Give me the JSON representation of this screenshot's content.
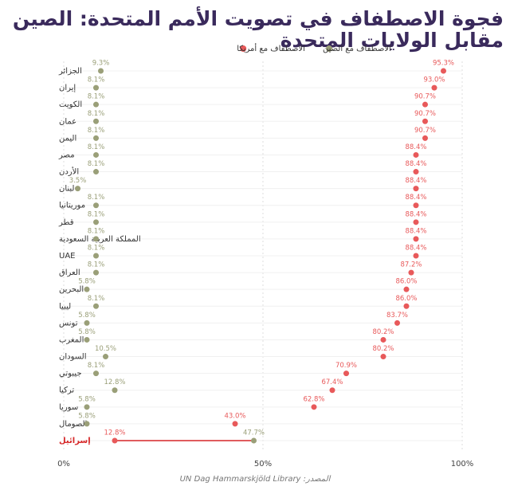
{
  "chart_data": {
    "type": "dumbbell",
    "title": "فجوة الاصطفاف في تصويت الأمم المتحدة: الصين مقابل الولايات المتحدة",
    "source": "المصدر: UN Dag Hammarskjöld Library",
    "categories": [
      "الجزائر",
      "إيران",
      "الكويت",
      "عمان",
      "اليمن",
      "مصر",
      "الأردن",
      "لبنان",
      "موريتانيا",
      "قطر",
      "المملكة العربية السعودية",
      "UAE",
      "العراق",
      "البحرين",
      "ليبيا",
      "تونس",
      "المغرب",
      "السودان",
      "جيبوتي",
      "تركيا",
      "سوريا",
      "الصومال",
      "إسرائيل"
    ],
    "series": [
      {
        "name": "الاصطفاف مع أمريكا",
        "color": "#e8595a",
        "values": [
          95.3,
          93.0,
          90.7,
          90.7,
          90.7,
          88.4,
          88.4,
          88.4,
          88.4,
          88.4,
          88.4,
          88.4,
          87.2,
          86.0,
          86.0,
          83.7,
          80.2,
          80.2,
          70.9,
          67.4,
          62.8,
          43.0,
          12.8
        ],
        "value_labels": [
          "95.3%",
          "93.0%",
          "90.7%",
          "90.7%",
          "90.7%",
          "88.4%",
          "88.4%",
          "88.4%",
          "88.4%",
          "88.4%",
          "88.4%",
          "88.4%",
          "87.2%",
          "86.0%",
          "86.0%",
          "83.7%",
          "80.2%",
          "80.2%",
          "70.9%",
          "67.4%",
          "62.8%",
          "43.0%",
          "12.8%"
        ]
      },
      {
        "name": "الاصطفاف مع الصين",
        "color": "#9a9f78",
        "values": [
          9.3,
          8.1,
          8.1,
          8.1,
          8.1,
          8.1,
          8.1,
          3.5,
          8.1,
          8.1,
          8.1,
          8.1,
          8.1,
          5.8,
          8.1,
          5.8,
          5.8,
          10.5,
          8.1,
          12.8,
          5.8,
          5.8,
          47.7
        ],
        "value_labels": [
          "9.3%",
          "8.1%",
          "8.1%",
          "8.1%",
          "8.1%",
          "8.1%",
          "8.1%",
          "3.5%",
          "8.1%",
          "8.1%",
          "8.1%",
          "8.1%",
          "8.1%",
          "5.8%",
          "8.1%",
          "5.8%",
          "5.8%",
          "10.5%",
          "8.1%",
          "12.8%",
          "5.8%",
          "5.8%",
          "47.7%"
        ]
      }
    ],
    "highlight": "إسرائيل",
    "highlight_color": "#d62728",
    "xlim": [
      0,
      100
    ],
    "xticks": [
      {
        "value": 0,
        "label": "0%"
      },
      {
        "value": 50,
        "label": "50%"
      },
      {
        "value": 100,
        "label": "100%"
      }
    ],
    "grid": true
  }
}
